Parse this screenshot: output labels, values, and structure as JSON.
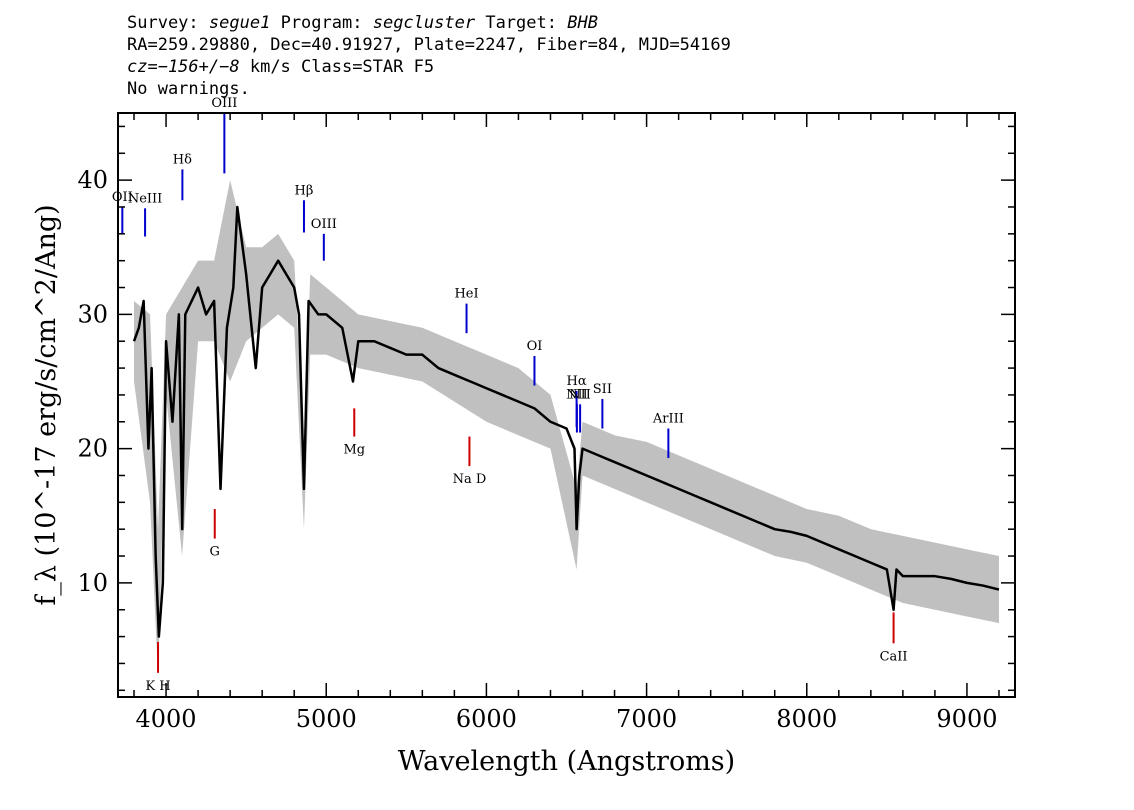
{
  "header": {
    "survey_label": "Survey:",
    "survey": "segue1",
    "program_label": "Program:",
    "program": "segcluster",
    "target_label": "Target:",
    "target": "BHB",
    "line2": "RA=259.29880, Dec=40.91927, Plate=2247, Fiber=84, MJD=54169",
    "cz": "cz=−156+/−8",
    "line3_rest": "km/s Class=STAR F5",
    "line4": "No warnings."
  },
  "chart_data": {
    "type": "line",
    "xlabel": "Wavelength (Angstroms)",
    "ylabel": "f_λ (10^-17 erg/s/cm^2/Ang)",
    "xlim": [
      3700,
      9300
    ],
    "ylim": [
      1.5,
      45
    ],
    "x_ticks": [
      4000,
      5000,
      6000,
      7000,
      8000,
      9000
    ],
    "y_ticks": [
      10,
      20,
      30,
      40
    ],
    "grid": false,
    "colors": {
      "flux": "#000000",
      "noise": "#c0c0c0",
      "emission": "#0000cc",
      "absorption": "#cc0000"
    },
    "series": [
      {
        "style": "black",
        "x": [
          3800,
          3830,
          3860,
          3890,
          3910,
          3935,
          3955,
          3980,
          4000,
          4040,
          4080,
          4101,
          4120,
          4200,
          4250,
          4300,
          4340,
          4380,
          4420,
          4445,
          4500,
          4560,
          4600,
          4650,
          4700,
          4750,
          4800,
          4830,
          4861,
          4890,
          4950,
          5000,
          5100,
          5167,
          5200,
          5300,
          5400,
          5500,
          5600,
          5700,
          5800,
          5900,
          6000,
          6100,
          6200,
          6300,
          6400,
          6500,
          6550,
          6563,
          6580,
          6600,
          6700,
          6800,
          6900,
          7000,
          7100,
          7200,
          7300,
          7400,
          7500,
          7600,
          7700,
          7800,
          7900,
          8000,
          8100,
          8200,
          8300,
          8400,
          8500,
          8542,
          8560,
          8600,
          8700,
          8800,
          8900,
          9000,
          9100,
          9200
        ],
        "y": [
          28,
          29,
          31,
          20,
          26,
          12,
          6,
          10,
          28,
          22,
          30,
          14,
          30,
          32,
          30,
          31,
          17,
          29,
          32,
          38,
          33,
          26,
          32,
          33,
          34,
          33,
          32,
          30,
          17,
          31,
          30,
          30,
          29,
          25,
          28,
          28,
          27.5,
          27,
          27,
          26,
          25.5,
          25,
          24.5,
          24,
          23.5,
          23,
          22,
          21.5,
          20,
          14,
          18,
          20,
          19.5,
          19,
          18.5,
          18,
          17.5,
          17,
          16.5,
          16,
          15.5,
          15,
          14.5,
          14,
          13.8,
          13.5,
          13,
          12.5,
          12,
          11.5,
          11,
          8,
          11,
          10.5,
          10.5,
          10.5,
          10.3,
          10,
          9.8,
          9.5
        ]
      },
      {
        "style": "gray",
        "x": [
          3800,
          3900,
          3950,
          4000,
          4100,
          4200,
          4300,
          4400,
          4500,
          4600,
          4700,
          4800,
          4861,
          4900,
          5000,
          5200,
          5400,
          5600,
          5800,
          6000,
          6200,
          6400,
          6563,
          6600,
          6800,
          7000,
          7200,
          7400,
          7600,
          7800,
          8000,
          8200,
          8400,
          8600,
          8800,
          9000,
          9200
        ],
        "y_upper": [
          31,
          30,
          14,
          30,
          32,
          34,
          34,
          40,
          35,
          35,
          36,
          34,
          20,
          33,
          32,
          30,
          29.5,
          29,
          28,
          27,
          26,
          24,
          17,
          22,
          21,
          20.5,
          19.5,
          18.5,
          17.5,
          16.5,
          15.5,
          15,
          14,
          13.5,
          13,
          12.5,
          12
        ],
        "y_lower": [
          25,
          16,
          3,
          24,
          12,
          28,
          28,
          25,
          28,
          29,
          30,
          29,
          14,
          27,
          27,
          26,
          25.5,
          25,
          23.5,
          22,
          21,
          20,
          11,
          18,
          17,
          16,
          15,
          14,
          13,
          12,
          11.5,
          10.5,
          9.5,
          8.5,
          8,
          7.5,
          7
        ]
      }
    ],
    "emission_lines": [
      {
        "label": "OII",
        "wavelength": 3727,
        "y_bottom": 36,
        "y_top": 38
      },
      {
        "label": "NeIII",
        "wavelength": 3869,
        "y_bottom": 35.8,
        "y_top": 37.9
      },
      {
        "label": "Hδ",
        "wavelength": 4102,
        "y_bottom": 38.5,
        "y_top": 40.8
      },
      {
        "label": "OIII",
        "wavelength": 4364,
        "y_bottom": 40.5,
        "y_top": 45
      },
      {
        "label": "Hβ",
        "wavelength": 4861,
        "y_bottom": 36.1,
        "y_top": 38.5
      },
      {
        "label": "OIII",
        "wavelength": 4985,
        "y_bottom": 34,
        "y_top": 36
      },
      {
        "label": "HeI",
        "wavelength": 5876,
        "y_bottom": 28.6,
        "y_top": 30.8
      },
      {
        "label": "OI",
        "wavelength": 6300,
        "y_bottom": 24.7,
        "y_top": 26.9
      },
      {
        "label": "NII",
        "wavelength": 6565,
        "y_bottom": 21.2,
        "y_top": 23.3
      },
      {
        "label": "Hα",
        "wavelength": 6563,
        "y_bottom": 21.6,
        "y_top": 24.3
      },
      {
        "label": "NII",
        "wavelength": 6585,
        "y_bottom": 21.2,
        "y_top": 23.3
      },
      {
        "label": "SII",
        "wavelength": 6724,
        "y_bottom": 21.5,
        "y_top": 23.7
      },
      {
        "label": "ArIII",
        "wavelength": 7136,
        "y_bottom": 19.3,
        "y_top": 21.5
      }
    ],
    "absorption_lines": [
      {
        "label": "K H",
        "wavelength": 3950,
        "y_bottom": 3.3,
        "y_top": 5.6
      },
      {
        "label": "G",
        "wavelength": 4304,
        "y_bottom": 13.3,
        "y_top": 15.5
      },
      {
        "label": "Mg",
        "wavelength": 5175,
        "y_bottom": 20.9,
        "y_top": 23
      },
      {
        "label": "Na D",
        "wavelength": 5894,
        "y_bottom": 18.7,
        "y_top": 20.9
      },
      {
        "label": "CaII",
        "wavelength": 8542,
        "y_bottom": 5.5,
        "y_top": 7.8
      }
    ]
  }
}
